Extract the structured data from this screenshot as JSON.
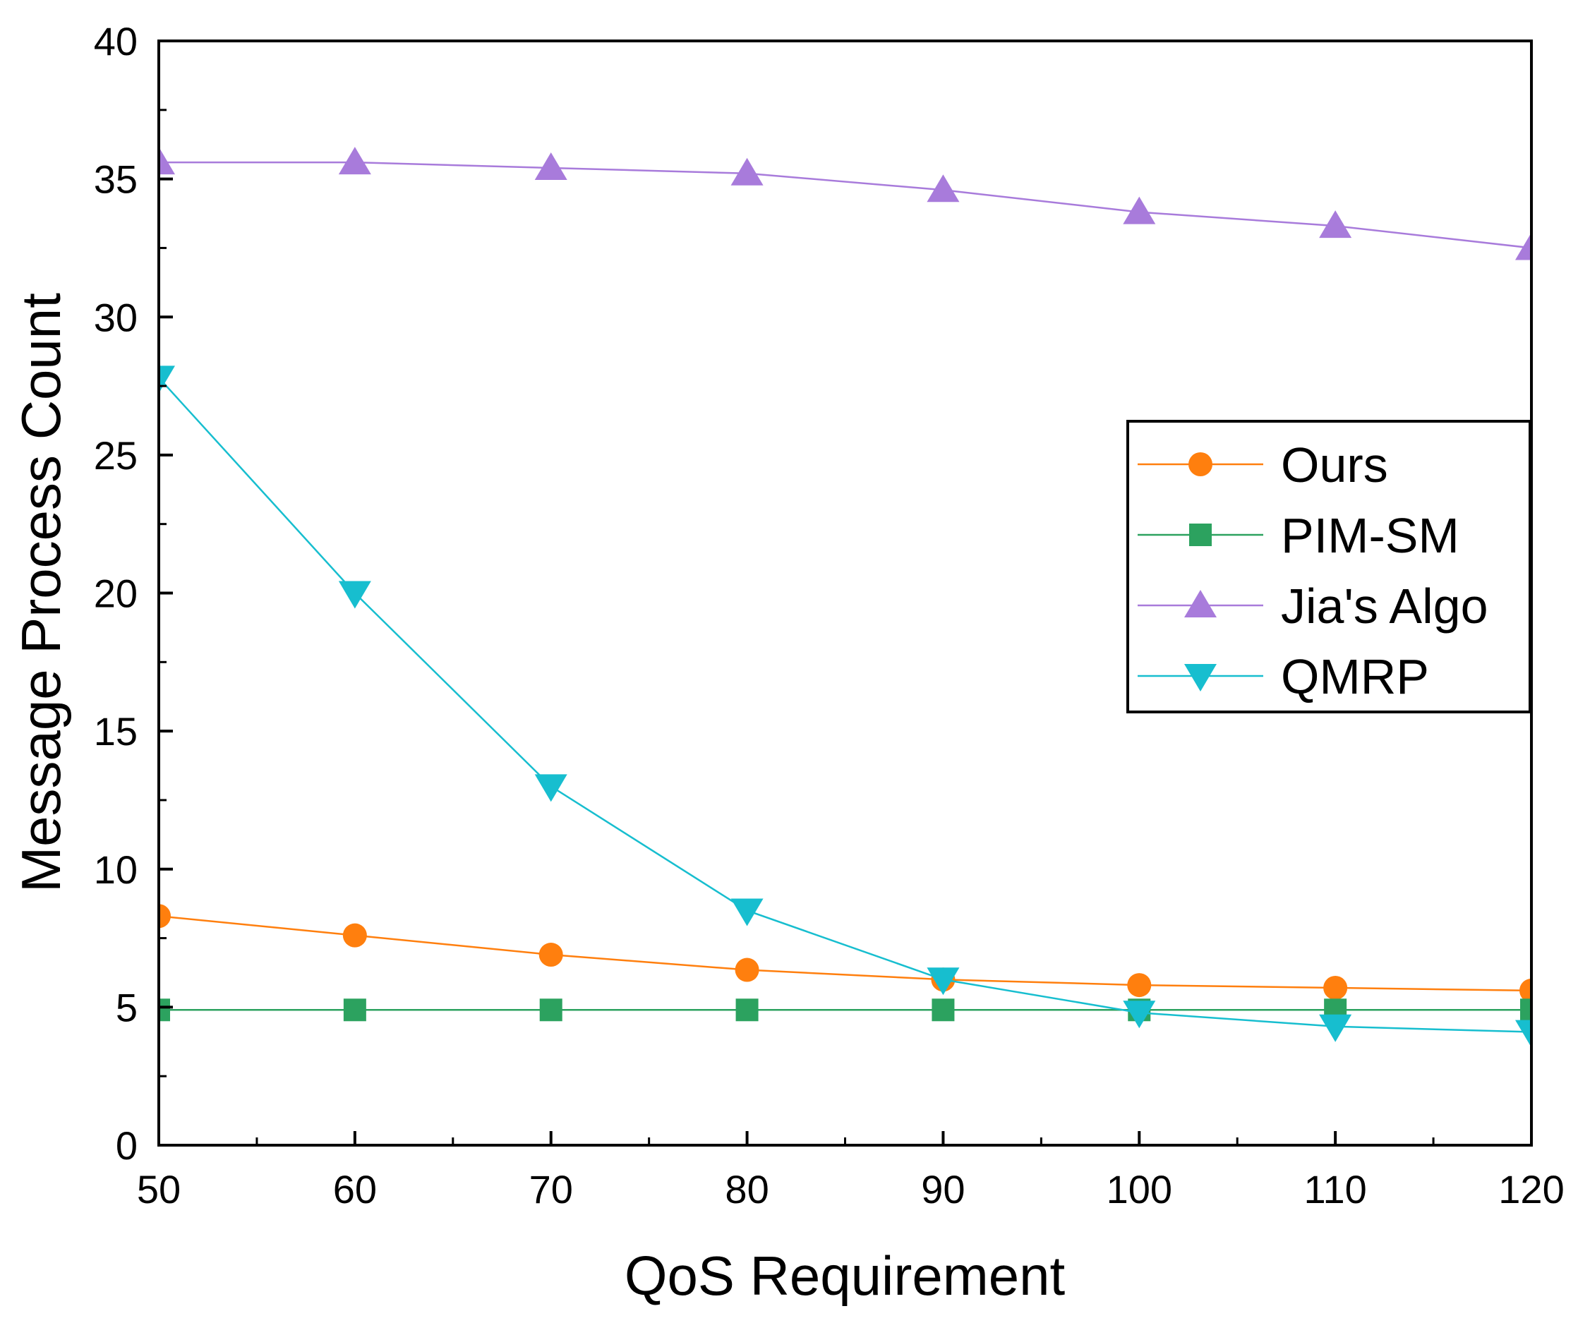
{
  "chart_data": {
    "type": "line",
    "title": "",
    "xlabel": "QoS Requirement",
    "ylabel": "Message Process Count",
    "xlim": [
      50,
      120
    ],
    "ylim": [
      0,
      40
    ],
    "x": [
      50,
      60,
      70,
      80,
      90,
      100,
      110,
      120
    ],
    "xticks": [
      "50",
      "60",
      "70",
      "80",
      "90",
      "100",
      "110",
      "120"
    ],
    "yticks": [
      "0",
      "5",
      "10",
      "15",
      "20",
      "25",
      "30",
      "35",
      "40"
    ],
    "grid": false,
    "legend_position": "center-right",
    "series": [
      {
        "name": "Ours",
        "marker": "circle",
        "color": "#FF7F0E",
        "values": [
          8.3,
          7.6,
          6.9,
          6.35,
          6.0,
          5.8,
          5.7,
          5.6
        ]
      },
      {
        "name": "PIM-SM",
        "marker": "square",
        "color": "#2CA25F",
        "values": [
          4.9,
          4.9,
          4.9,
          4.9,
          4.9,
          4.9,
          4.9,
          4.9
        ]
      },
      {
        "name": "Jia's Algo",
        "marker": "triangle-up",
        "color": "#A87BDB",
        "values": [
          35.6,
          35.6,
          35.4,
          35.2,
          34.6,
          33.8,
          33.3,
          32.5
        ]
      },
      {
        "name": "QMRP",
        "marker": "triangle-down",
        "color": "#17BECF",
        "values": [
          27.8,
          20.0,
          13.0,
          8.5,
          6.0,
          4.8,
          4.3,
          4.1
        ]
      }
    ]
  }
}
